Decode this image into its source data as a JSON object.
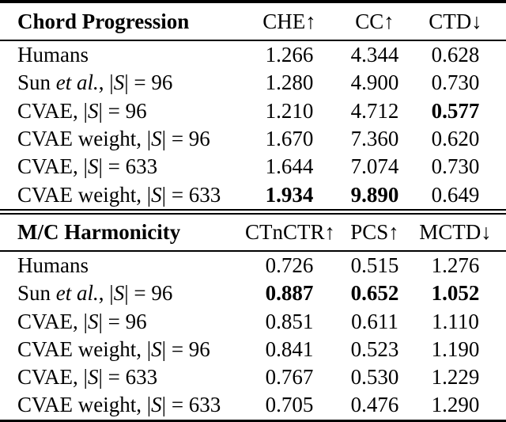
{
  "figure": {
    "background": "#ffffff",
    "text_color": "#000000",
    "rule_color": "#000000"
  },
  "tables": [
    {
      "title": "Chord Progression",
      "columns": [
        "CHE↑",
        "CC↑",
        "CTD↓"
      ],
      "rows": [
        {
          "label": "Humans",
          "label_parts": [
            {
              "t": "Humans",
              "s": "r"
            }
          ],
          "values": [
            {
              "v": "1.266",
              "bold": false
            },
            {
              "v": "4.344",
              "bold": false
            },
            {
              "v": "0.628",
              "bold": false
            }
          ]
        },
        {
          "label": "Sun et al., |S| = 96",
          "label_parts": [
            {
              "t": "Sun ",
              "s": "r"
            },
            {
              "t": "et al.",
              "s": "i"
            },
            {
              "t": ", |",
              "s": "r"
            },
            {
              "t": "S",
              "s": "i"
            },
            {
              "t": "| = 96",
              "s": "r"
            }
          ],
          "values": [
            {
              "v": "1.280",
              "bold": false
            },
            {
              "v": "4.900",
              "bold": false
            },
            {
              "v": "0.730",
              "bold": false
            }
          ]
        },
        {
          "label": "CVAE, |S| = 96",
          "label_parts": [
            {
              "t": "CVAE, |",
              "s": "r"
            },
            {
              "t": "S",
              "s": "i"
            },
            {
              "t": "| = 96",
              "s": "r"
            }
          ],
          "values": [
            {
              "v": "1.210",
              "bold": false
            },
            {
              "v": "4.712",
              "bold": false
            },
            {
              "v": "0.577",
              "bold": true
            }
          ]
        },
        {
          "label": "CVAE weight, |S| = 96",
          "label_parts": [
            {
              "t": "CVAE weight, |",
              "s": "r"
            },
            {
              "t": "S",
              "s": "i"
            },
            {
              "t": "| = 96",
              "s": "r"
            }
          ],
          "values": [
            {
              "v": "1.670",
              "bold": false
            },
            {
              "v": "7.360",
              "bold": false
            },
            {
              "v": "0.620",
              "bold": false
            }
          ]
        },
        {
          "label": "CVAE, |S| = 633",
          "label_parts": [
            {
              "t": "CVAE, |",
              "s": "r"
            },
            {
              "t": "S",
              "s": "i"
            },
            {
              "t": "| = 633",
              "s": "r"
            }
          ],
          "values": [
            {
              "v": "1.644",
              "bold": false
            },
            {
              "v": "7.074",
              "bold": false
            },
            {
              "v": "0.730",
              "bold": false
            }
          ]
        },
        {
          "label": "CVAE weight, |S| = 633",
          "label_parts": [
            {
              "t": "CVAE weight, |",
              "s": "r"
            },
            {
              "t": "S",
              "s": "i"
            },
            {
              "t": "| = 633",
              "s": "r"
            }
          ],
          "values": [
            {
              "v": "1.934",
              "bold": true
            },
            {
              "v": "9.890",
              "bold": true
            },
            {
              "v": "0.649",
              "bold": false
            }
          ]
        }
      ]
    },
    {
      "title": "M/C Harmonicity",
      "columns": [
        "CTnCTR↑",
        "PCS↑",
        "MCTD↓"
      ],
      "rows": [
        {
          "label": "Humans",
          "label_parts": [
            {
              "t": "Humans",
              "s": "r"
            }
          ],
          "values": [
            {
              "v": "0.726",
              "bold": false
            },
            {
              "v": "0.515",
              "bold": false
            },
            {
              "v": "1.276",
              "bold": false
            }
          ]
        },
        {
          "label": "Sun et al., |S| = 96",
          "label_parts": [
            {
              "t": "Sun ",
              "s": "r"
            },
            {
              "t": "et al.",
              "s": "i"
            },
            {
              "t": ", |",
              "s": "r"
            },
            {
              "t": "S",
              "s": "i"
            },
            {
              "t": "| = 96",
              "s": "r"
            }
          ],
          "values": [
            {
              "v": "0.887",
              "bold": true
            },
            {
              "v": "0.652",
              "bold": true
            },
            {
              "v": "1.052",
              "bold": true
            }
          ]
        },
        {
          "label": "CVAE, |S| = 96",
          "label_parts": [
            {
              "t": "CVAE, |",
              "s": "r"
            },
            {
              "t": "S",
              "s": "i"
            },
            {
              "t": "| = 96",
              "s": "r"
            }
          ],
          "values": [
            {
              "v": "0.851",
              "bold": false
            },
            {
              "v": "0.611",
              "bold": false
            },
            {
              "v": "1.110",
              "bold": false
            }
          ]
        },
        {
          "label": "CVAE weight, |S| = 96",
          "label_parts": [
            {
              "t": "CVAE weight, |",
              "s": "r"
            },
            {
              "t": "S",
              "s": "i"
            },
            {
              "t": "| = 96",
              "s": "r"
            }
          ],
          "values": [
            {
              "v": "0.841",
              "bold": false
            },
            {
              "v": "0.523",
              "bold": false
            },
            {
              "v": "1.190",
              "bold": false
            }
          ]
        },
        {
          "label": "CVAE, |S| = 633",
          "label_parts": [
            {
              "t": "CVAE, |",
              "s": "r"
            },
            {
              "t": "S",
              "s": "i"
            },
            {
              "t": "| = 633",
              "s": "r"
            }
          ],
          "values": [
            {
              "v": "0.767",
              "bold": false
            },
            {
              "v": "0.530",
              "bold": false
            },
            {
              "v": "1.229",
              "bold": false
            }
          ]
        },
        {
          "label": "CVAE weight, |S| = 633",
          "label_parts": [
            {
              "t": "CVAE weight, |",
              "s": "r"
            },
            {
              "t": "S",
              "s": "i"
            },
            {
              "t": "| = 633",
              "s": "r"
            }
          ],
          "values": [
            {
              "v": "0.705",
              "bold": false
            },
            {
              "v": "0.476",
              "bold": false
            },
            {
              "v": "1.290",
              "bold": false
            }
          ]
        }
      ]
    }
  ]
}
